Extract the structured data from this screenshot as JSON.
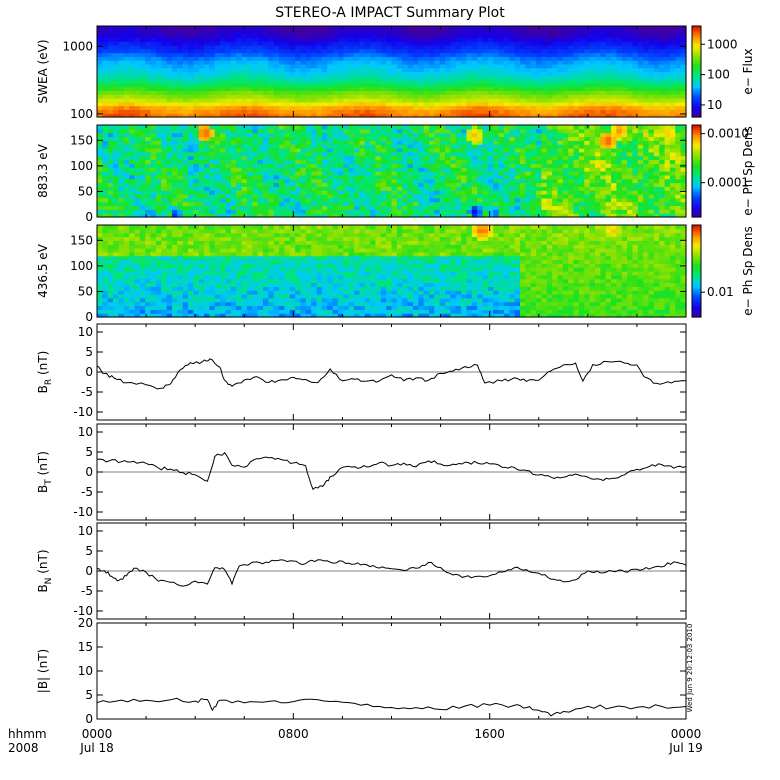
{
  "chart_data": {
    "title": "STEREO-A IMPACT Summary Plot",
    "type": "stacked-timeseries",
    "time_axis": {
      "row_labels": [
        "hhmm",
        "2008"
      ],
      "ticks": [
        {
          "hhmm": "0000",
          "date": "Jul 18"
        },
        {
          "hhmm": "0800",
          "date": ""
        },
        {
          "hhmm": "1600",
          "date": ""
        },
        {
          "hhmm": "0000",
          "date": "Jul 19"
        }
      ],
      "range_hours": [
        0,
        24
      ]
    },
    "timestamp": "Wed Jun  9 20:12:03 2010",
    "panels": [
      {
        "id": "swea",
        "type": "heatmap",
        "ylabel": "SWEA (eV)",
        "yscale": "log",
        "ylim": [
          90,
          2000
        ],
        "yticks": [
          100,
          1000
        ],
        "ytick_labels": [
          "100",
          "1000"
        ],
        "colorbar": {
          "label": "e− Flux",
          "scale": "log",
          "range": [
            4,
            4000
          ],
          "ticks": [
            10,
            100,
            1000
          ],
          "tick_labels": [
            "10",
            "100",
            "1000"
          ]
        },
        "energy_profile": [
          [
            90,
            0.92
          ],
          [
            120,
            0.88
          ],
          [
            160,
            0.72
          ],
          [
            220,
            0.6
          ],
          [
            300,
            0.45
          ],
          [
            420,
            0.36
          ],
          [
            560,
            0.32
          ],
          [
            700,
            0.26
          ],
          [
            850,
            0.2
          ],
          [
            1000,
            0.16
          ],
          [
            1300,
            0.09
          ],
          [
            1600,
            0.05
          ],
          [
            2000,
            0.03
          ]
        ]
      },
      {
        "id": "pad883",
        "type": "heatmap",
        "ylabel": "883.3 eV",
        "ylim": [
          0,
          180
        ],
        "yticks": [
          0,
          50,
          100,
          150
        ],
        "colorbar": {
          "label": "e− Ph Sp Dens",
          "scale": "log",
          "range": [
            2e-05,
            0.0015
          ],
          "ticks": [
            0.0001,
            0.001
          ],
          "tick_labels": [
            "0.0001",
            "0.0010"
          ]
        },
        "hot_spots": [
          {
            "t": 4.4,
            "pa": 165,
            "v": 0.95
          },
          {
            "t": 15.4,
            "pa": 160,
            "v": 0.85
          },
          {
            "t": 20.8,
            "pa": 150,
            "v": 0.95
          },
          {
            "t": 21.3,
            "pa": 170,
            "v": 0.9
          },
          {
            "t": 23.3,
            "pa": 165,
            "v": 0.85
          }
        ],
        "cold_spots": [
          {
            "t": 3.2,
            "pa": 5,
            "v": 0.15
          },
          {
            "t": 15.4,
            "pa": 10,
            "v": 0.1
          },
          {
            "t": 16.2,
            "pa": 8,
            "v": 0.2
          }
        ]
      },
      {
        "id": "pad436",
        "type": "heatmap",
        "ylabel": "436.5 eV",
        "ylim": [
          0,
          180
        ],
        "yticks": [
          0,
          50,
          100,
          150
        ],
        "colorbar": {
          "label": "e− Ph Sp Dens",
          "scale": "log",
          "range": [
            0.004,
            0.12
          ],
          "ticks": [
            0.01
          ],
          "tick_labels": [
            "0.01"
          ]
        },
        "hot_spots": [
          {
            "t": 15.7,
            "pa": 170,
            "v": 0.95
          },
          {
            "t": 21.0,
            "pa": 170,
            "v": 0.85
          }
        ],
        "regime_change_hours": 17.2
      },
      {
        "id": "br",
        "type": "line",
        "ylabel": "B",
        "ylabel_sub": "R",
        "ylabel_unit": "(nT)",
        "ylim": [
          -12,
          12
        ],
        "yticks": [
          -10,
          -5,
          0,
          5,
          10
        ],
        "series": [
          [
            0,
            1.5
          ],
          [
            0.3,
            -0.5
          ],
          [
            0.7,
            -1.5
          ],
          [
            1.2,
            -2.5
          ],
          [
            2.0,
            -3.2
          ],
          [
            2.6,
            -4.0
          ],
          [
            3.0,
            -3.0
          ],
          [
            3.4,
            0.5
          ],
          [
            3.8,
            2.0
          ],
          [
            4.3,
            2.8
          ],
          [
            4.6,
            3.0
          ],
          [
            5.0,
            1.0
          ],
          [
            5.2,
            -2.0
          ],
          [
            5.5,
            -3.5
          ],
          [
            6.0,
            -2.0
          ],
          [
            6.5,
            -1.5
          ],
          [
            7.0,
            -2.5
          ],
          [
            7.5,
            -2.0
          ],
          [
            8.0,
            -1.0
          ],
          [
            8.5,
            -2.0
          ],
          [
            9.0,
            -3.0
          ],
          [
            9.5,
            0.8
          ],
          [
            10.0,
            -2.0
          ],
          [
            10.5,
            -1.5
          ],
          [
            11.0,
            -2.5
          ],
          [
            11.5,
            -2.0
          ],
          [
            12.0,
            -1.0
          ],
          [
            12.5,
            -2.5
          ],
          [
            13.0,
            -1.5
          ],
          [
            13.5,
            -2.0
          ],
          [
            14.0,
            -0.5
          ],
          [
            14.5,
            0.5
          ],
          [
            15.0,
            1.5
          ],
          [
            15.5,
            2.0
          ],
          [
            15.8,
            -2.5
          ],
          [
            16.5,
            -2.0
          ],
          [
            17.0,
            -1.5
          ],
          [
            17.5,
            -2.5
          ],
          [
            18.0,
            -2.0
          ],
          [
            18.5,
            0.5
          ],
          [
            19.0,
            1.5
          ],
          [
            19.5,
            2.0
          ],
          [
            19.8,
            -2.0
          ],
          [
            20.2,
            2.0
          ],
          [
            20.8,
            2.5
          ],
          [
            21.5,
            2.5
          ],
          [
            22.0,
            2.0
          ],
          [
            22.3,
            -1.5
          ],
          [
            22.8,
            -2.5
          ],
          [
            23.4,
            -3.0
          ],
          [
            24.0,
            -2.0
          ]
        ]
      },
      {
        "id": "bt",
        "type": "line",
        "ylabel": "B",
        "ylabel_sub": "T",
        "ylabel_unit": "(nT)",
        "ylim": [
          -12,
          12
        ],
        "yticks": [
          -10,
          -5,
          0,
          5,
          10
        ],
        "series": [
          [
            0,
            3.0
          ],
          [
            0.5,
            2.8
          ],
          [
            1.0,
            2.5
          ],
          [
            1.5,
            3.0
          ],
          [
            2.0,
            2.0
          ],
          [
            2.5,
            1.0
          ],
          [
            3.0,
            0.5
          ],
          [
            3.5,
            -0.5
          ],
          [
            4.0,
            -0.5
          ],
          [
            4.5,
            -2.5
          ],
          [
            4.8,
            3.8
          ],
          [
            5.2,
            4.5
          ],
          [
            5.5,
            2.0
          ],
          [
            6.0,
            1.5
          ],
          [
            6.5,
            3.0
          ],
          [
            7.0,
            3.5
          ],
          [
            7.5,
            3.0
          ],
          [
            8.0,
            2.5
          ],
          [
            8.5,
            1.5
          ],
          [
            8.8,
            -4.5
          ],
          [
            9.2,
            -3.5
          ],
          [
            9.5,
            -1.0
          ],
          [
            10.0,
            1.0
          ],
          [
            10.5,
            1.5
          ],
          [
            11.0,
            1.5
          ],
          [
            11.5,
            2.0
          ],
          [
            12.0,
            1.5
          ],
          [
            12.5,
            2.0
          ],
          [
            13.0,
            1.5
          ],
          [
            13.5,
            2.5
          ],
          [
            14.0,
            2.0
          ],
          [
            14.5,
            2.0
          ],
          [
            15.0,
            2.5
          ],
          [
            15.5,
            2.5
          ],
          [
            16.0,
            2.0
          ],
          [
            16.5,
            1.5
          ],
          [
            17.0,
            1.5
          ],
          [
            17.5,
            0.5
          ],
          [
            18.0,
            -0.5
          ],
          [
            18.5,
            -1.0
          ],
          [
            19.0,
            -1.5
          ],
          [
            19.5,
            -0.5
          ],
          [
            20.0,
            -1.0
          ],
          [
            20.5,
            -2.0
          ],
          [
            21.0,
            -1.5
          ],
          [
            21.5,
            -0.5
          ],
          [
            22.0,
            0.5
          ],
          [
            22.5,
            1.5
          ],
          [
            23.0,
            2.0
          ],
          [
            23.5,
            1.0
          ],
          [
            24.0,
            1.5
          ]
        ]
      },
      {
        "id": "bn",
        "type": "line",
        "ylabel": "B",
        "ylabel_sub": "N",
        "ylabel_unit": "(nT)",
        "ylim": [
          -12,
          12
        ],
        "yticks": [
          -10,
          -5,
          0,
          5,
          10
        ],
        "series": [
          [
            0,
            1.0
          ],
          [
            0.3,
            0.0
          ],
          [
            0.6,
            -1.5
          ],
          [
            0.9,
            -2.0
          ],
          [
            1.2,
            -1.0
          ],
          [
            1.5,
            0.5
          ],
          [
            2.0,
            -0.5
          ],
          [
            2.5,
            -2.5
          ],
          [
            3.0,
            -3.0
          ],
          [
            3.5,
            -3.5
          ],
          [
            4.0,
            -2.5
          ],
          [
            4.5,
            -3.0
          ],
          [
            4.8,
            1.0
          ],
          [
            5.2,
            0.5
          ],
          [
            5.5,
            -3.0
          ],
          [
            5.8,
            1.5
          ],
          [
            6.5,
            2.0
          ],
          [
            7.0,
            2.0
          ],
          [
            7.5,
            2.5
          ],
          [
            8.0,
            2.5
          ],
          [
            8.5,
            1.5
          ],
          [
            9.0,
            3.0
          ],
          [
            9.5,
            2.0
          ],
          [
            10.0,
            2.5
          ],
          [
            10.5,
            2.0
          ],
          [
            11.0,
            1.5
          ],
          [
            11.5,
            0.5
          ],
          [
            12.0,
            0.5
          ],
          [
            12.5,
            0.0
          ],
          [
            13.0,
            1.0
          ],
          [
            13.5,
            2.0
          ],
          [
            14.0,
            1.0
          ],
          [
            14.5,
            -1.0
          ],
          [
            15.0,
            -1.5
          ],
          [
            15.5,
            -1.5
          ],
          [
            16.0,
            -1.0
          ],
          [
            16.5,
            0.0
          ],
          [
            17.0,
            0.5
          ],
          [
            17.5,
            0.5
          ],
          [
            18.0,
            -0.5
          ],
          [
            18.5,
            -2.0
          ],
          [
            19.0,
            -2.5
          ],
          [
            19.5,
            -2.0
          ],
          [
            20.0,
            0.0
          ],
          [
            20.5,
            -0.5
          ],
          [
            21.0,
            0.0
          ],
          [
            21.5,
            -0.5
          ],
          [
            22.0,
            0.5
          ],
          [
            22.5,
            0.5
          ],
          [
            23.0,
            1.0
          ],
          [
            23.5,
            2.0
          ],
          [
            24.0,
            1.5
          ]
        ]
      },
      {
        "id": "bmag",
        "type": "line",
        "ylabel": "|B|",
        "ylabel_unit": "(nT)",
        "ylim": [
          0,
          20
        ],
        "yticks": [
          0,
          5,
          10,
          15,
          20
        ],
        "series": [
          [
            0,
            3.5
          ],
          [
            1.0,
            3.8
          ],
          [
            2.0,
            3.8
          ],
          [
            3.0,
            4.0
          ],
          [
            4.0,
            3.8
          ],
          [
            4.5,
            4.2
          ],
          [
            4.7,
            2.0
          ],
          [
            5.0,
            4.0
          ],
          [
            6.0,
            3.5
          ],
          [
            7.0,
            3.5
          ],
          [
            8.0,
            3.5
          ],
          [
            9.0,
            4.0
          ],
          [
            10.0,
            3.5
          ],
          [
            11.0,
            3.0
          ],
          [
            12.0,
            2.5
          ],
          [
            13.0,
            2.2
          ],
          [
            14.0,
            2.0
          ],
          [
            15.0,
            2.5
          ],
          [
            16.0,
            3.0
          ],
          [
            17.0,
            3.0
          ],
          [
            17.5,
            2.5
          ],
          [
            18.0,
            2.0
          ],
          [
            18.5,
            0.8
          ],
          [
            19.0,
            1.5
          ],
          [
            20.0,
            2.5
          ],
          [
            21.0,
            2.5
          ],
          [
            22.0,
            2.5
          ],
          [
            23.0,
            2.5
          ],
          [
            24.0,
            2.5
          ]
        ]
      }
    ]
  }
}
